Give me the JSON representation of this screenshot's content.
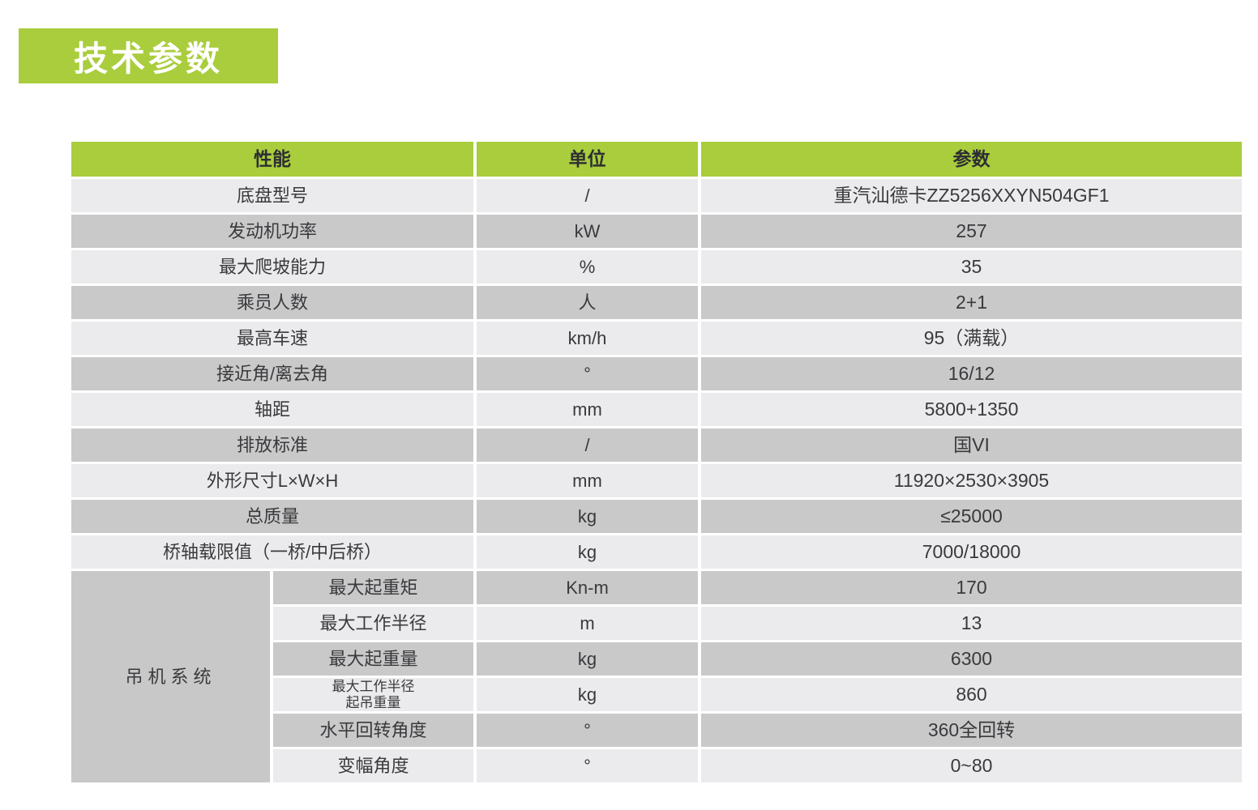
{
  "title": "技术参数",
  "colors": {
    "accent_green": "#a9cd3c",
    "row_light": "#ebebed",
    "row_dark": "#c9c9c9",
    "group_cell": "#c8c8c8",
    "text": "#3a3a3e"
  },
  "table": {
    "headers": {
      "name": "性能",
      "unit": "单位",
      "value": "参数"
    },
    "rows": [
      {
        "name": "底盘型号",
        "unit": "/",
        "value": "重汽汕德卡ZZ5256XXYN504GF1"
      },
      {
        "name": "发动机功率",
        "unit": "kW",
        "value": "257"
      },
      {
        "name": "最大爬坡能力",
        "unit": "%",
        "value": "35"
      },
      {
        "name": "乘员人数",
        "unit": "人",
        "value": "2+1"
      },
      {
        "name": "最高车速",
        "unit": "km/h",
        "value": "95（满载）"
      },
      {
        "name": "接近角/离去角",
        "unit": "°",
        "value": "16/12"
      },
      {
        "name": "轴距",
        "unit": "mm",
        "value": "5800+1350"
      },
      {
        "name": "排放标准",
        "unit": "/",
        "value": "国VI"
      },
      {
        "name": "外形尺寸L×W×H",
        "unit": "mm",
        "value": "11920×2530×3905"
      },
      {
        "name": "总质量",
        "unit": "kg",
        "value": "≤25000"
      },
      {
        "name": "桥轴载限值（一桥/中后桥）",
        "unit": "kg",
        "value": "7000/18000"
      }
    ],
    "crane_group": {
      "label": "吊机系统",
      "rows": [
        {
          "name": "最大起重矩",
          "unit": "Kn-m",
          "value": "170"
        },
        {
          "name": "最大工作半径",
          "unit": "m",
          "value": "13"
        },
        {
          "name": "最大起重量",
          "unit": "kg",
          "value": "6300"
        },
        {
          "name": "最大工作半径\n起吊重量",
          "unit": "kg",
          "value": "860"
        },
        {
          "name": "水平回转角度",
          "unit": "°",
          "value": "360全回转"
        },
        {
          "name": "变幅角度",
          "unit": "°",
          "value": "0~80"
        }
      ]
    }
  }
}
